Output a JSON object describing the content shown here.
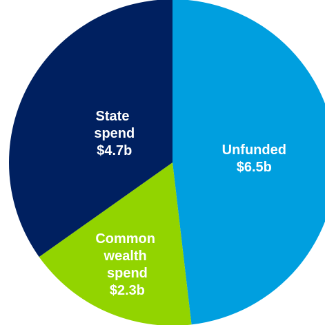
{
  "chart_data": {
    "type": "pie",
    "categories": [
      "Unfunded",
      "Common wealth spend",
      "State spend"
    ],
    "values": [
      6.5,
      2.3,
      4.7
    ],
    "value_labels": [
      "$6.5b",
      "$2.3b",
      "$4.7b"
    ],
    "colors": [
      "#009fdf",
      "#92d400",
      "#002060"
    ]
  }
}
